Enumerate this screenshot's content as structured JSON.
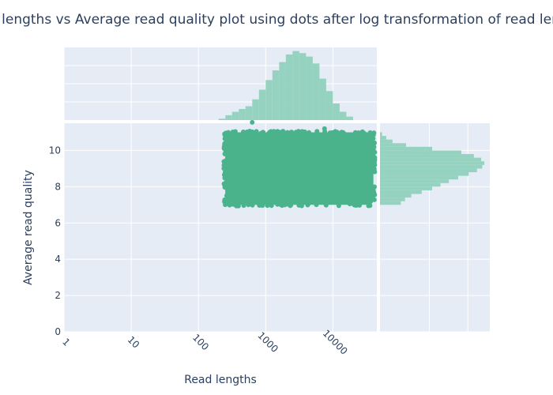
{
  "chart_data": {
    "type": "scatter",
    "title": "Read lengths vs Average read quality plot using dots after log transformation of read lengths",
    "xlabel": "Read lengths",
    "ylabel": "Average read quality",
    "x_scale": "log",
    "x_ticks": [
      "1",
      "10",
      "100",
      "1000",
      "10000"
    ],
    "x_tick_values": [
      1,
      10,
      100,
      1000,
      10000
    ],
    "xlim": [
      1,
      45000
    ],
    "y_ticks": [
      "0",
      "2",
      "4",
      "6",
      "8",
      "10"
    ],
    "ylim": [
      0,
      11.5
    ],
    "grid": true,
    "legend": "none",
    "colors": {
      "points": "#4ab38c",
      "histogram": "#96d2c0",
      "plot_bg": "#e5ecf6",
      "grid": "#ffffff",
      "text": "#2a3f5f"
    },
    "dense_region": {
      "read_length_range": [
        250,
        40000
      ],
      "quality_range": [
        7.0,
        11.0
      ]
    },
    "points": [
      {
        "x": 260,
        "y": 10.6
      },
      {
        "x": 320,
        "y": 10.5
      },
      {
        "x": 630,
        "y": 11.55
      },
      {
        "x": 7500,
        "y": 11.2
      },
      {
        "x": 40000,
        "y": 10.1
      },
      {
        "x": 42000,
        "y": 9.9
      },
      {
        "x": 42000,
        "y": 9.6
      },
      {
        "x": 40000,
        "y": 7.8
      },
      {
        "x": 35000,
        "y": 9.3
      },
      {
        "x": 300,
        "y": 7.1
      },
      {
        "x": 1200,
        "y": 11.05
      },
      {
        "x": 3500,
        "y": 11.05
      },
      {
        "x": 25000,
        "y": 10.6
      },
      {
        "x": 20000,
        "y": 7.1
      },
      {
        "x": 330,
        "y": 9.8
      },
      {
        "x": 2200,
        "y": 10.95
      },
      {
        "x": 15000,
        "y": 10.9
      }
    ],
    "marginal_x_histogram": {
      "log10_bin_edges_start": 2.3,
      "log10_bin_width": 0.1,
      "relative_counts": [
        0.02,
        0.07,
        0.12,
        0.16,
        0.2,
        0.3,
        0.44,
        0.58,
        0.72,
        0.84,
        0.95,
        1.0,
        0.97,
        0.92,
        0.82,
        0.6,
        0.42,
        0.24,
        0.12,
        0.05
      ]
    },
    "marginal_y_histogram": {
      "quality_bin_edges_start": 7.0,
      "quality_bin_width": 0.2,
      "relative_counts": [
        0.2,
        0.24,
        0.3,
        0.4,
        0.5,
        0.58,
        0.66,
        0.75,
        0.85,
        0.93,
        0.98,
        1.0,
        0.97,
        0.9,
        0.78,
        0.5,
        0.25,
        0.12,
        0.06,
        0.02
      ]
    }
  }
}
